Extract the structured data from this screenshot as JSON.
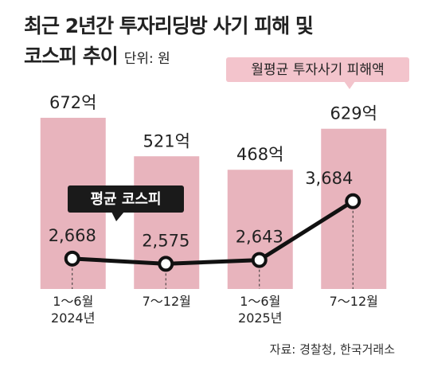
{
  "chart_data": {
    "type": "bar",
    "title": "최근 2년간 투자리딩방 사기 피해 및\n코스피 추이",
    "unit": "단위: 원",
    "source": "자료: 경찰청, 한국거래소",
    "categories": [
      "1～6월\n2024년",
      "7～12월",
      "1～6월\n2025년",
      "7～12월"
    ],
    "series": [
      {
        "name": "월평균 투자사기 피해액",
        "type": "bar",
        "color": "#e8b4bd",
        "values": [
          672,
          521,
          468,
          629
        ],
        "value_labels": [
          "672억",
          "521억",
          "468억",
          "629억"
        ]
      },
      {
        "name": "평균 코스피",
        "type": "line",
        "color": "#111111",
        "values": [
          2668,
          2575,
          2643,
          3684
        ],
        "value_labels": [
          "2,668",
          "2,575",
          "2,643",
          "3,684"
        ]
      }
    ]
  }
}
